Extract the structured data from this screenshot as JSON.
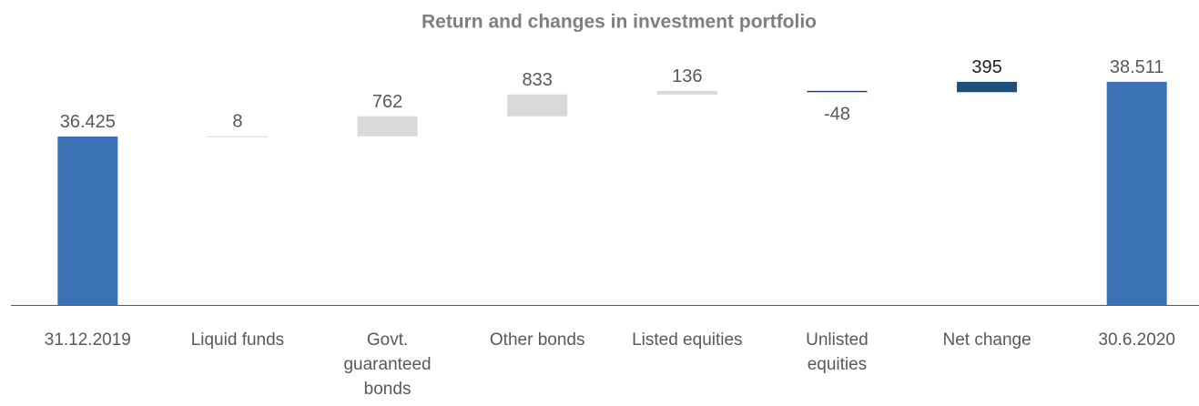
{
  "chart_data": {
    "type": "waterfall",
    "title": "Return and changes in investment portfolio",
    "categories": [
      "31.12.2019",
      "Liquid funds",
      "Govt. guaranteed bonds",
      "Other bonds",
      "Listed equities",
      "Unlisted equities",
      "Net change",
      "30.6.2020"
    ],
    "values": [
      36425,
      8,
      762,
      833,
      136,
      -48,
      395,
      38511
    ],
    "value_labels": [
      "36.425",
      "8",
      "762",
      "833",
      "136",
      "-48",
      "395",
      "38.511"
    ],
    "colors": [
      "#3a72b5",
      "#d9d9d9",
      "#d9d9d9",
      "#d9d9d9",
      "#d9d9d9",
      "#1f3864",
      "#1f4e79",
      "#3a72b5"
    ],
    "ylim": [
      30000,
      40000
    ]
  }
}
